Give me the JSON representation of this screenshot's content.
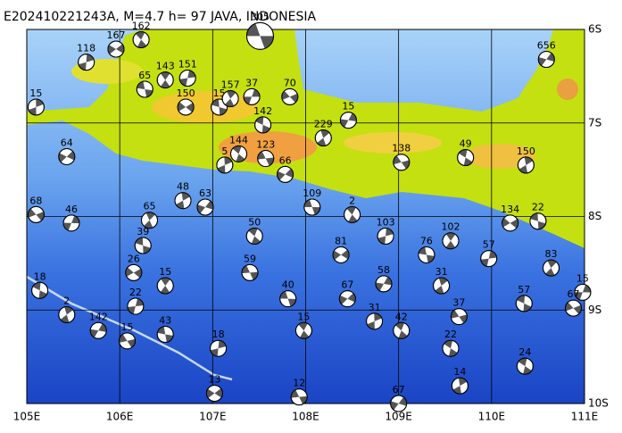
{
  "chart_data": {
    "type": "map",
    "title": "E202410221243A, M=4.7 h= 97 JAVA, INDONESIA",
    "xlim": [
      105,
      111
    ],
    "ylim": [
      -10,
      -6
    ],
    "xticks": [
      {
        "value": 105,
        "label": "105E"
      },
      {
        "value": 106,
        "label": "106E"
      },
      {
        "value": 107,
        "label": "107E"
      },
      {
        "value": 108,
        "label": "108E"
      },
      {
        "value": 109,
        "label": "109E"
      },
      {
        "value": 110,
        "label": "110E"
      },
      {
        "value": 111,
        "label": "111E"
      }
    ],
    "yticks": [
      {
        "value": -6,
        "label": "6S"
      },
      {
        "value": -7,
        "label": "7S"
      },
      {
        "value": -8,
        "label": "8S"
      },
      {
        "value": -9,
        "label": "9S"
      },
      {
        "value": -10,
        "label": "10S"
      }
    ],
    "grid": true,
    "events": [
      {
        "lon": 107.51,
        "lat": -6.07,
        "depth": 305
      },
      {
        "lon": 106.23,
        "lat": -6.11,
        "depth": 162
      },
      {
        "lon": 105.64,
        "lat": -6.35,
        "depth": 118
      },
      {
        "lon": 105.96,
        "lat": -6.21,
        "depth": 167
      },
      {
        "lon": 106.27,
        "lat": -6.64,
        "depth": 65
      },
      {
        "lon": 106.49,
        "lat": -6.54,
        "depth": 143
      },
      {
        "lon": 106.73,
        "lat": -6.52,
        "depth": 151
      },
      {
        "lon": 106.71,
        "lat": -6.83,
        "depth": 150
      },
      {
        "lon": 107.07,
        "lat": -6.83,
        "depth": 15
      },
      {
        "lon": 107.19,
        "lat": -6.74,
        "depth": 157
      },
      {
        "lon": 107.42,
        "lat": -6.72,
        "depth": 37
      },
      {
        "lon": 107.83,
        "lat": -6.72,
        "depth": 70
      },
      {
        "lon": 107.54,
        "lat": -7.02,
        "depth": 142
      },
      {
        "lon": 108.19,
        "lat": -7.16,
        "depth": 229
      },
      {
        "lon": 108.46,
        "lat": -6.97,
        "depth": 15
      },
      {
        "lon": 109.03,
        "lat": -7.42,
        "depth": 138
      },
      {
        "lon": 109.72,
        "lat": -7.37,
        "depth": 49
      },
      {
        "lon": 110.37,
        "lat": -7.45,
        "depth": 150
      },
      {
        "lon": 110.59,
        "lat": -6.32,
        "depth": 656
      },
      {
        "lon": 107.57,
        "lat": -7.38,
        "depth": 123
      },
      {
        "lon": 107.28,
        "lat": -7.33,
        "depth": 144
      },
      {
        "lon": 107.13,
        "lat": -7.45,
        "depth": 5
      },
      {
        "lon": 107.78,
        "lat": -7.55,
        "depth": 66
      },
      {
        "lon": 108.07,
        "lat": -7.9,
        "depth": 109
      },
      {
        "lon": 108.5,
        "lat": -7.98,
        "depth": 2
      },
      {
        "lon": 108.86,
        "lat": -8.21,
        "depth": 103
      },
      {
        "lon": 108.38,
        "lat": -8.41,
        "depth": 81
      },
      {
        "lon": 109.3,
        "lat": -8.41,
        "depth": 76
      },
      {
        "lon": 109.56,
        "lat": -8.26,
        "depth": 102
      },
      {
        "lon": 109.97,
        "lat": -8.45,
        "depth": 57
      },
      {
        "lon": 110.2,
        "lat": -8.07,
        "depth": 134
      },
      {
        "lon": 110.5,
        "lat": -8.05,
        "depth": 22
      },
      {
        "lon": 110.64,
        "lat": -8.55,
        "depth": 83
      },
      {
        "lon": 110.98,
        "lat": -8.81,
        "depth": 15
      },
      {
        "lon": 110.88,
        "lat": -8.98,
        "depth": 67
      },
      {
        "lon": 110.35,
        "lat": -8.93,
        "depth": 57
      },
      {
        "lon": 109.46,
        "lat": -8.74,
        "depth": 31
      },
      {
        "lon": 108.84,
        "lat": -8.72,
        "depth": 58
      },
      {
        "lon": 109.65,
        "lat": -9.07,
        "depth": 37
      },
      {
        "lon": 109.56,
        "lat": -9.41,
        "depth": 22
      },
      {
        "lon": 109.66,
        "lat": -9.81,
        "depth": 14
      },
      {
        "lon": 109.0,
        "lat": -10.0,
        "depth": 67
      },
      {
        "lon": 107.93,
        "lat": -9.93,
        "depth": 12
      },
      {
        "lon": 109.03,
        "lat": -9.22,
        "depth": 42
      },
      {
        "lon": 108.74,
        "lat": -9.12,
        "depth": 31
      },
      {
        "lon": 108.45,
        "lat": -8.88,
        "depth": 67
      },
      {
        "lon": 107.81,
        "lat": -8.88,
        "depth": 40
      },
      {
        "lon": 107.98,
        "lat": -9.22,
        "depth": 15
      },
      {
        "lon": 107.06,
        "lat": -9.41,
        "depth": 18
      },
      {
        "lon": 107.02,
        "lat": -9.89,
        "depth": 13
      },
      {
        "lon": 106.49,
        "lat": -9.26,
        "depth": 43
      },
      {
        "lon": 106.49,
        "lat": -8.74,
        "depth": 15
      },
      {
        "lon": 106.17,
        "lat": -8.96,
        "depth": 22
      },
      {
        "lon": 106.15,
        "lat": -8.6,
        "depth": 26
      },
      {
        "lon": 106.25,
        "lat": -8.31,
        "depth": 39
      },
      {
        "lon": 106.32,
        "lat": -8.04,
        "depth": 65
      },
      {
        "lon": 105.48,
        "lat": -8.07,
        "depth": 46
      },
      {
        "lon": 105.1,
        "lat": -7.98,
        "depth": 68
      },
      {
        "lon": 105.14,
        "lat": -8.79,
        "depth": 18
      },
      {
        "lon": 105.43,
        "lat": -9.05,
        "depth": 2
      },
      {
        "lon": 105.77,
        "lat": -9.22,
        "depth": 142
      },
      {
        "lon": 106.08,
        "lat": -9.33,
        "depth": 15
      },
      {
        "lon": 110.36,
        "lat": -9.6,
        "depth": 24
      },
      {
        "lon": 106.68,
        "lat": -7.83,
        "depth": 48
      },
      {
        "lon": 106.92,
        "lat": -7.9,
        "depth": 63
      },
      {
        "lon": 107.4,
        "lat": -8.6,
        "depth": 59
      },
      {
        "lon": 107.45,
        "lat": -8.21,
        "depth": 50
      },
      {
        "lon": 105.1,
        "lat": -6.83,
        "depth": 15
      },
      {
        "lon": 105.43,
        "lat": -7.36,
        "depth": 64
      }
    ]
  }
}
